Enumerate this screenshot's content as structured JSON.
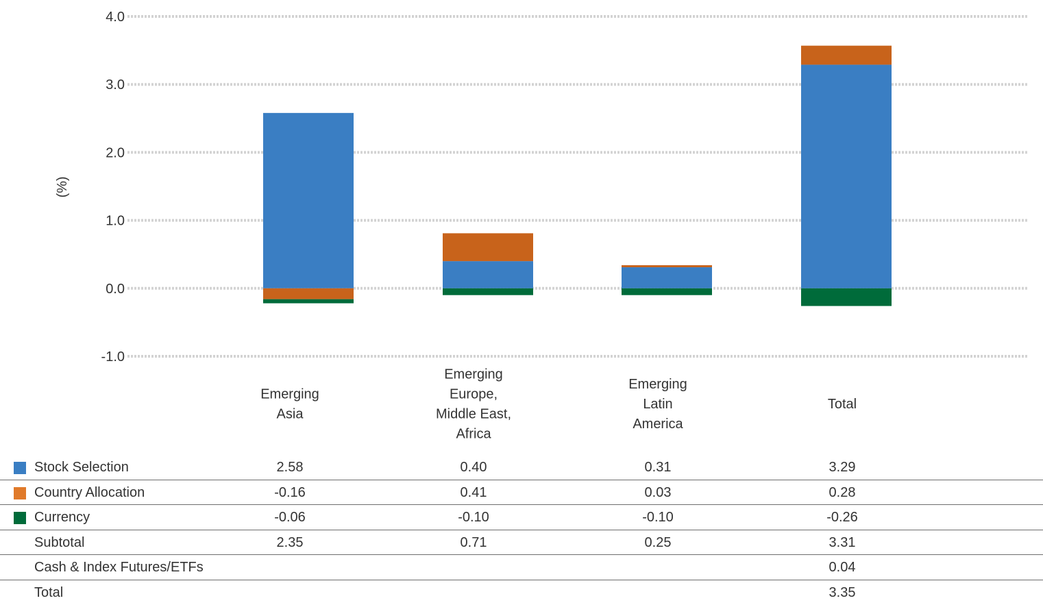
{
  "chart_data": {
    "type": "bar",
    "stacked": true,
    "ylabel": "(%)",
    "ylim": [
      -1.0,
      4.0
    ],
    "yticks": [
      "4.0",
      "3.0",
      "2.0",
      "1.0",
      "0.0",
      "-1.0"
    ],
    "grid": true,
    "categories": [
      [
        "Emerging",
        "Asia"
      ],
      [
        "Emerging",
        "Europe,",
        "Middle East,",
        "Africa"
      ],
      [
        "Emerging",
        "Latin",
        "America"
      ],
      [
        "Total"
      ]
    ],
    "series": [
      {
        "name": "Stock Selection",
        "color": "#3a7ec3",
        "values": [
          2.58,
          0.4,
          0.31,
          3.29
        ]
      },
      {
        "name": "Country Allocation",
        "color": "#c8631b",
        "values": [
          -0.16,
          0.41,
          0.03,
          0.28
        ]
      },
      {
        "name": "Currency",
        "color": "#006b3a",
        "values": [
          -0.06,
          -0.1,
          -0.1,
          -0.26
        ]
      }
    ]
  },
  "table": {
    "rows": [
      {
        "label": "Stock Selection",
        "swatch": "#3a7ec3",
        "cells": [
          "2.58",
          "0.40",
          "0.31",
          "3.29"
        ]
      },
      {
        "label": "Country Allocation",
        "swatch": "#e07a2a",
        "cells": [
          "-0.16",
          "0.41",
          "0.03",
          "0.28"
        ]
      },
      {
        "label": "Currency",
        "swatch": "#006b3a",
        "cells": [
          "-0.06",
          "-0.10",
          "-0.10",
          "-0.26"
        ]
      },
      {
        "label": "Subtotal",
        "swatch": null,
        "cells": [
          "2.35",
          "0.71",
          "0.25",
          "3.31"
        ]
      },
      {
        "label": "Cash & Index Futures/ETFs",
        "swatch": null,
        "cells": [
          "",
          "",
          "",
          "0.04"
        ]
      },
      {
        "label": "Total",
        "swatch": null,
        "cells": [
          "",
          "",
          "",
          "3.35"
        ]
      }
    ]
  }
}
